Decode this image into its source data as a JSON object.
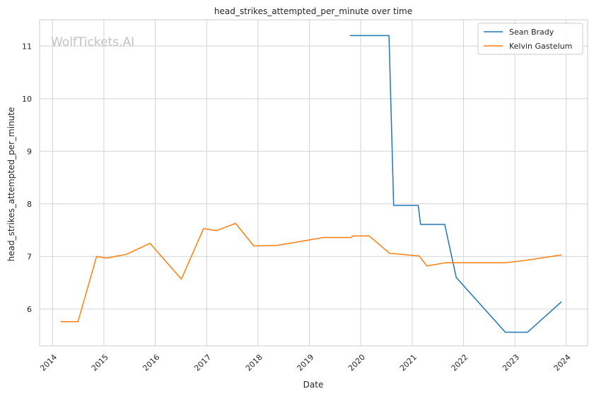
{
  "chart_data": {
    "type": "line",
    "title": "head_strikes_attempted_per_minute over time",
    "xlabel": "Date",
    "ylabel": "head_strikes_attempted_per_minute",
    "xlim": [
      "2013-10-01",
      "2024-06-01"
    ],
    "ylim": [
      5.3,
      11.5
    ],
    "x_ticks": [
      "2014",
      "2015",
      "2016",
      "2017",
      "2018",
      "2019",
      "2020",
      "2021",
      "2022",
      "2023",
      "2024"
    ],
    "y_ticks": [
      6,
      7,
      8,
      9,
      10,
      11
    ],
    "grid": true,
    "legend_position": "top-right",
    "watermark": "WolfTickets.AI",
    "series": [
      {
        "name": "Sean Brady",
        "color": "#1f77b4",
        "points": [
          [
            "2019-10-15",
            11.2
          ],
          [
            "2020-07-20",
            11.2
          ],
          [
            "2020-08-22",
            7.97
          ],
          [
            "2021-02-13",
            7.97
          ],
          [
            "2021-03-01",
            7.61
          ],
          [
            "2021-08-20",
            7.61
          ],
          [
            "2021-11-10",
            6.6
          ],
          [
            "2022-10-25",
            5.56
          ],
          [
            "2023-04-01",
            5.56
          ],
          [
            "2023-11-28",
            6.14
          ]
        ]
      },
      {
        "name": "Kelvin Gastelum",
        "color": "#ff7f0e",
        "points": [
          [
            "2014-03-01",
            5.76
          ],
          [
            "2014-07-01",
            5.76
          ],
          [
            "2014-11-10",
            7.0
          ],
          [
            "2015-01-20",
            6.97
          ],
          [
            "2015-06-10",
            7.04
          ],
          [
            "2015-11-25",
            7.25
          ],
          [
            "2016-07-05",
            6.57
          ],
          [
            "2016-12-10",
            7.53
          ],
          [
            "2017-03-10",
            7.49
          ],
          [
            "2017-07-25",
            7.63
          ],
          [
            "2017-12-01",
            7.2
          ],
          [
            "2018-05-15",
            7.21
          ],
          [
            "2019-04-10",
            7.36
          ],
          [
            "2019-10-25",
            7.36
          ],
          [
            "2019-11-05",
            7.39
          ],
          [
            "2020-03-01",
            7.39
          ],
          [
            "2020-07-25",
            7.06
          ],
          [
            "2021-02-20",
            7.01
          ],
          [
            "2021-04-15",
            6.82
          ],
          [
            "2021-08-25",
            6.88
          ],
          [
            "2022-10-25",
            6.88
          ],
          [
            "2023-04-01",
            6.93
          ],
          [
            "2023-11-28",
            7.03
          ]
        ]
      }
    ]
  }
}
